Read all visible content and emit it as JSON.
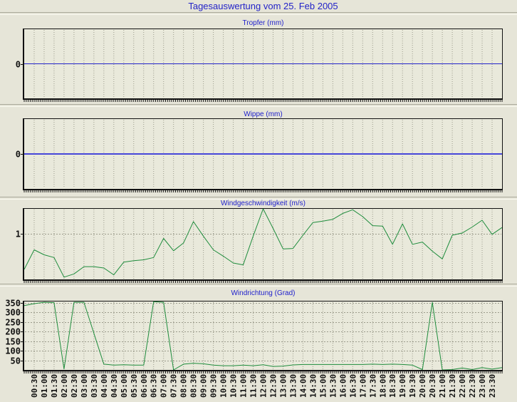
{
  "title": "Tagesauswertung vom 25. Feb 2005",
  "colors": {
    "title_blue": "#2323c8",
    "panel_title_blue": "#2020cc",
    "line_green": "#1e8c3c",
    "zero_line_blue": "#2323c8",
    "zero_line_blue_thick": "#4646d8",
    "grid_gray": "#9b9b8b",
    "axis_black": "#111111",
    "page_bg": "#e6e5d8",
    "plot_bg": "#e9e9db"
  },
  "x_labels": [
    "00:30",
    "01:00",
    "01:30",
    "02:00",
    "02:30",
    "03:00",
    "03:30",
    "04:00",
    "04:30",
    "05:00",
    "05:30",
    "06:00",
    "06:30",
    "07:00",
    "07:30",
    "08:00",
    "08:30",
    "09:00",
    "09:30",
    "10:00",
    "10:30",
    "11:00",
    "11:30",
    "12:00",
    "12:30",
    "13:00",
    "13:30",
    "14:00",
    "14:30",
    "15:00",
    "15:30",
    "16:00",
    "16:30",
    "17:00",
    "17:30",
    "18:00",
    "18:30",
    "19:00",
    "19:30",
    "20:00",
    "20:30",
    "21:00",
    "21:30",
    "22:00",
    "22:30",
    "23:00",
    "23:30"
  ],
  "chart_data": [
    {
      "type": "line",
      "title": "Tropfer (mm)",
      "ylabel": "mm",
      "y_ticks": [
        {
          "v": 0,
          "label": "0"
        }
      ],
      "ylim": [
        -1,
        1
      ],
      "line_color": "#2323c8",
      "line_width": 1,
      "values": [
        0,
        0,
        0,
        0,
        0,
        0,
        0,
        0,
        0,
        0,
        0,
        0,
        0,
        0,
        0,
        0,
        0,
        0,
        0,
        0,
        0,
        0,
        0,
        0,
        0,
        0,
        0,
        0,
        0,
        0,
        0,
        0,
        0,
        0,
        0,
        0,
        0,
        0,
        0,
        0,
        0,
        0,
        0,
        0,
        0,
        0,
        0,
        0,
        0
      ]
    },
    {
      "type": "line",
      "title": "Wippe (mm)",
      "ylabel": "mm",
      "y_ticks": [
        {
          "v": 0,
          "label": "0"
        }
      ],
      "ylim": [
        -1,
        1
      ],
      "line_color": "#4646d8",
      "line_width": 2,
      "values": [
        0,
        0,
        0,
        0,
        0,
        0,
        0,
        0,
        0,
        0,
        0,
        0,
        0,
        0,
        0,
        0,
        0,
        0,
        0,
        0,
        0,
        0,
        0,
        0,
        0,
        0,
        0,
        0,
        0,
        0,
        0,
        0,
        0,
        0,
        0,
        0,
        0,
        0,
        0,
        0,
        0,
        0,
        0,
        0,
        0,
        0,
        0,
        0,
        0
      ]
    },
    {
      "type": "line",
      "title": "Windgeschwindigkeit (m/s)",
      "ylabel": "m/s",
      "y_ticks": [
        {
          "v": 1,
          "label": "1"
        }
      ],
      "ylim": [
        0,
        1.55
      ],
      "line_color": "#1e8c3c",
      "line_width": 1,
      "values": [
        0.22,
        0.65,
        0.54,
        0.48,
        0.05,
        0.12,
        0.28,
        0.28,
        0.25,
        0.1,
        0.38,
        0.41,
        0.43,
        0.48,
        0.9,
        0.63,
        0.8,
        1.27,
        0.95,
        0.65,
        0.51,
        0.36,
        0.32,
        0.95,
        1.55,
        1.12,
        0.67,
        0.68,
        0.97,
        1.25,
        1.28,
        1.32,
        1.45,
        1.53,
        1.38,
        1.18,
        1.17,
        0.77,
        1.22,
        0.77,
        0.82,
        0.62,
        0.45,
        0.97,
        1.02,
        1.15,
        1.3,
        0.99,
        1.14
      ]
    },
    {
      "type": "line",
      "title": "Windrichtung (Grad)",
      "ylabel": "Grad",
      "y_ticks": [
        {
          "v": 50,
          "label": "50"
        },
        {
          "v": 100,
          "label": "100"
        },
        {
          "v": 150,
          "label": "150"
        },
        {
          "v": 200,
          "label": "200"
        },
        {
          "v": 250,
          "label": "250"
        },
        {
          "v": 300,
          "label": "300"
        },
        {
          "v": 350,
          "label": "350"
        }
      ],
      "ylim": [
        0,
        356
      ],
      "line_color": "#1e8c3c",
      "line_width": 1,
      "values": [
        335,
        345,
        352,
        350,
        5,
        352,
        352,
        190,
        30,
        25,
        27,
        25,
        25,
        355,
        352,
        0,
        30,
        35,
        32,
        25,
        22,
        22,
        25,
        22,
        27,
        18,
        20,
        26,
        28,
        28,
        28,
        28,
        28,
        28,
        28,
        30,
        28,
        30,
        28,
        25,
        2,
        352,
        0,
        2,
        10,
        2,
        12,
        4,
        12
      ]
    }
  ]
}
